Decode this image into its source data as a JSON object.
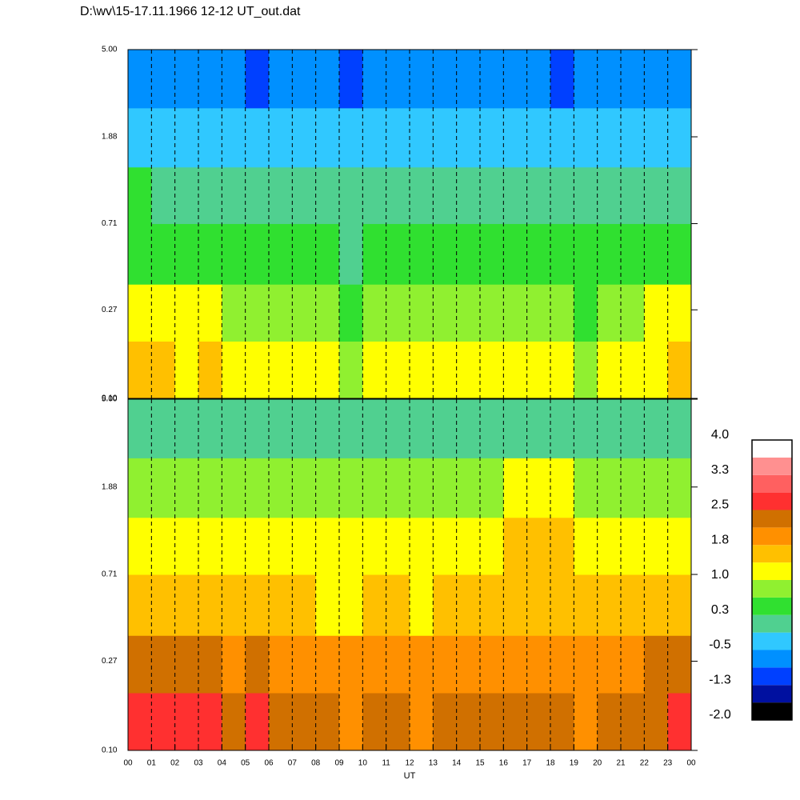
{
  "chart_data": [
    {
      "type": "heatmap",
      "title": "D:\\wv\\15-17.11.1966  12-12 UT_out.dat",
      "log_y": true,
      "grid": true,
      "xlim": [
        0,
        24
      ],
      "ylim": [
        0.1,
        5
      ],
      "x_bins": [
        0,
        1,
        2,
        3,
        4,
        5,
        6,
        7,
        8,
        9,
        10,
        11,
        12,
        13,
        14,
        15,
        16,
        17,
        18,
        19,
        20,
        21,
        22,
        23,
        24
      ],
      "y_bins": [
        0.1,
        0.19,
        0.36,
        0.71,
        1.34,
        2.6,
        5
      ],
      "yticks": [
        {
          "value": 0.1,
          "label": "0.10"
        },
        0.27,
        0.71,
        1.88,
        {
          "value": 5,
          "label": "5.00"
        }
      ],
      "z": [
        [
          1.4,
          1.6,
          1.3,
          1.4,
          1.2,
          1.1,
          1.0,
          1.1,
          1.0,
          0.9,
          1.0,
          1.1,
          1.0,
          1.2,
          1.3,
          1.2,
          1.1,
          1.0,
          1.0,
          0.9,
          1.0,
          1.1,
          1.3,
          1.4
        ],
        [
          1.1,
          1.2,
          1.0,
          1.0,
          0.9,
          0.8,
          0.7,
          0.8,
          0.7,
          0.6,
          0.7,
          0.8,
          0.7,
          0.8,
          0.9,
          0.8,
          0.8,
          0.7,
          0.7,
          0.6,
          0.7,
          0.8,
          1.0,
          1.1
        ],
        [
          0.6,
          0.6,
          0.5,
          0.5,
          0.4,
          0.4,
          0.3,
          0.4,
          0.3,
          0.2,
          0.3,
          0.4,
          0.3,
          0.4,
          0.5,
          0.4,
          0.5,
          0.4,
          0.3,
          0.3,
          0.3,
          0.4,
          0.5,
          0.6
        ],
        [
          0.3,
          0.2,
          0.2,
          0.1,
          0.1,
          0.0,
          0.0,
          0.1,
          0.0,
          -0.1,
          0.0,
          0.1,
          0.0,
          0.1,
          0.2,
          0.1,
          0.2,
          0.1,
          0.0,
          0.0,
          0.0,
          0.1,
          0.2,
          0.2
        ],
        [
          -0.2,
          -0.3,
          -0.3,
          -0.4,
          -0.4,
          -0.5,
          -0.4,
          -0.3,
          -0.4,
          -0.5,
          -0.4,
          -0.3,
          -0.4,
          -0.3,
          -0.3,
          -0.4,
          -0.3,
          -0.4,
          -0.5,
          -0.4,
          -0.4,
          -0.3,
          -0.3,
          -0.2
        ],
        [
          -0.6,
          -0.7,
          -0.7,
          -0.8,
          -0.8,
          -0.9,
          -0.8,
          -0.7,
          -0.8,
          -0.9,
          -0.8,
          -0.7,
          -0.8,
          -0.7,
          -0.7,
          -0.8,
          -0.7,
          -0.8,
          -0.9,
          -0.8,
          -0.8,
          -0.7,
          -0.7,
          -0.6
        ]
      ]
    },
    {
      "type": "heatmap",
      "log_y": true,
      "grid": true,
      "xlabel": "UT",
      "xlim": [
        0,
        24
      ],
      "ylim": [
        0.1,
        5
      ],
      "x_bins": [
        0,
        1,
        2,
        3,
        4,
        5,
        6,
        7,
        8,
        9,
        10,
        11,
        12,
        13,
        14,
        15,
        16,
        17,
        18,
        19,
        20,
        21,
        22,
        23,
        24
      ],
      "y_bins": [
        0.1,
        0.19,
        0.36,
        0.71,
        1.34,
        2.6,
        5
      ],
      "xticks": [
        {
          "value": 0,
          "label": "00"
        },
        {
          "value": 1,
          "label": "01"
        },
        {
          "value": 2,
          "label": "02"
        },
        {
          "value": 3,
          "label": "03"
        },
        {
          "value": 4,
          "label": "04"
        },
        {
          "value": 5,
          "label": "05"
        },
        {
          "value": 6,
          "label": "06"
        },
        {
          "value": 7,
          "label": "07"
        },
        {
          "value": 8,
          "label": "08"
        },
        {
          "value": 9,
          "label": "09"
        },
        10,
        11,
        12,
        13,
        14,
        15,
        16,
        17,
        18,
        19,
        20,
        21,
        22,
        23,
        {
          "value": 24,
          "label": "00"
        }
      ],
      "yticks": [
        {
          "value": 0.1,
          "label": "0.10"
        },
        0.27,
        0.71,
        1.88,
        {
          "value": 5,
          "label": "5.00"
        }
      ],
      "z": [
        [
          2.6,
          2.7,
          2.6,
          2.5,
          2.4,
          2.5,
          2.3,
          2.2,
          2.2,
          2.1,
          2.2,
          2.2,
          2.1,
          2.2,
          2.3,
          2.2,
          2.2,
          2.3,
          2.2,
          2.1,
          2.2,
          2.3,
          2.4,
          2.6
        ],
        [
          2.3,
          2.4,
          2.3,
          2.2,
          2.1,
          2.2,
          2.0,
          2.0,
          1.9,
          1.9,
          2.0,
          2.0,
          1.9,
          2.0,
          2.1,
          2.0,
          2.0,
          2.1,
          2.0,
          1.9,
          2.0,
          2.1,
          2.2,
          2.3
        ],
        [
          1.6,
          1.6,
          1.5,
          1.5,
          1.4,
          1.5,
          1.4,
          1.4,
          1.3,
          1.3,
          1.4,
          1.4,
          1.3,
          1.4,
          1.5,
          1.5,
          1.6,
          1.7,
          1.7,
          1.5,
          1.4,
          1.5,
          1.5,
          1.6
        ],
        [
          1.3,
          1.3,
          1.2,
          1.3,
          1.2,
          1.2,
          1.2,
          1.2,
          1.1,
          1.1,
          1.2,
          1.2,
          1.1,
          1.2,
          1.3,
          1.3,
          1.4,
          1.5,
          1.5,
          1.3,
          1.2,
          1.3,
          1.3,
          1.3
        ],
        [
          0.9,
          0.9,
          0.8,
          0.9,
          0.9,
          0.8,
          0.9,
          0.8,
          0.8,
          0.8,
          0.9,
          0.9,
          0.8,
          0.9,
          0.9,
          0.9,
          1.0,
          1.0,
          1.0,
          0.9,
          0.9,
          0.9,
          0.9,
          0.9
        ],
        [
          0.1,
          0.0,
          0.1,
          0.0,
          0.1,
          0.0,
          0.1,
          0.0,
          0.0,
          0.1,
          0.0,
          0.1,
          0.0,
          0.1,
          0.0,
          0.1,
          0.0,
          0.1,
          0.0,
          0.1,
          0.0,
          0.1,
          0.0,
          0.1
        ]
      ],
      "colorbar": {
        "levels": [
          -2,
          -1.625,
          -1.25,
          -0.875,
          -0.5,
          -0.125,
          0.25,
          0.625,
          1,
          1.375,
          1.75,
          2.125,
          2.5,
          2.875,
          3.25,
          3.625,
          4
        ],
        "colors": [
          "#000000",
          "#0010a0",
          "#0040ff",
          "#0090ff",
          "#30c8ff",
          "#50d090",
          "#30e030",
          "#90f030",
          "#ffff00",
          "#ffc000",
          "#ff9000",
          "#d07000",
          "#ff3030",
          "#ff6060",
          "#ff9090",
          "#ffffff"
        ],
        "ticks": [
          {
            "value": -2,
            "label": "-2.0"
          },
          {
            "value": -1.25,
            "label": "-1.3"
          },
          {
            "value": -0.5,
            "label": "-0.5"
          },
          {
            "value": 0.25,
            "label": "0.3"
          },
          {
            "value": 1,
            "label": "1.0"
          },
          {
            "value": 1.75,
            "label": "1.8"
          },
          {
            "value": 2.5,
            "label": "2.5"
          },
          {
            "value": 3.25,
            "label": "3.3"
          },
          {
            "value": 4,
            "label": "4.0"
          }
        ]
      }
    }
  ]
}
